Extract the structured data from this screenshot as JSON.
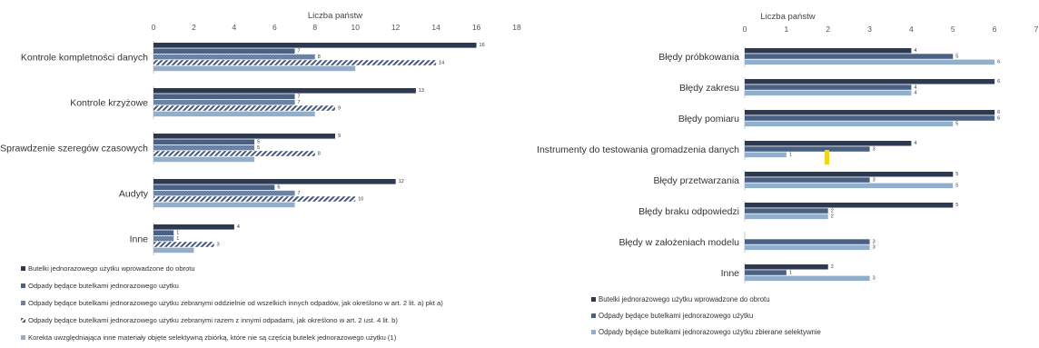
{
  "colors": {
    "dark": "#2b3a52",
    "mid": "#4a6183",
    "light": "#91aecb",
    "hatch": "#44577a",
    "axis": "#c8c8c8",
    "highlight": "#f2d31b"
  },
  "chart_data": [
    {
      "type": "bar",
      "orientation": "horizontal",
      "xlabel": "Liczba państw",
      "xlim": [
        0,
        18
      ],
      "xticks": [
        0,
        2,
        4,
        6,
        8,
        10,
        12,
        14,
        16,
        18
      ],
      "xtick_labels": [
        "0",
        "2",
        "4",
        "6",
        "8",
        "10",
        "12",
        "14",
        "16",
        "18"
      ],
      "axis_position": "top",
      "grid": false,
      "legend_position": "bottom",
      "categories": [
        "Kontrole kompletności danych",
        "Kontrole krzyżowe",
        "Sprawdzenie szeregów czasowych",
        "Audyty",
        "Inne"
      ],
      "series": [
        {
          "name": "Butelki jednorazowego użytku wprowadzone do obrotu",
          "style": "dark",
          "values": [
            16,
            13,
            9,
            12,
            4
          ],
          "value_labels": [
            "16",
            "13",
            "9",
            "12",
            "4"
          ]
        },
        {
          "name": "Odpady będące butelkami jednorazowego użytku",
          "style": "mid",
          "values": [
            7,
            7,
            5,
            6,
            1
          ],
          "value_labels": [
            "7",
            "7",
            "5",
            "6",
            "1"
          ]
        },
        {
          "name": "Odpady będące butelkami jednorazowego użytku zebranymi oddzielnie od wszelkich innych odpadów, jak określono w art. 2 lit. a) pkt a)",
          "style": "grid-pattern",
          "values": [
            8,
            7,
            5,
            7,
            1
          ],
          "value_labels": [
            "8",
            "7",
            "5",
            "7",
            "1"
          ]
        },
        {
          "name": "Odpady będące butelkami jednorazowego użytku zebranymi razem z innymi odpadami, jak określono w art. 2 ust. 4 lit. b)",
          "style": "hatch-pattern",
          "values": [
            14,
            9,
            8,
            10,
            3
          ],
          "value_labels": [
            "14",
            "9",
            "8",
            "10",
            "3"
          ]
        },
        {
          "name": "Korekta uwzględniająca inne materiały objęte selektywną zbiórką, które nie są częścią butelek jednorazowego użytku (1)",
          "style": "light",
          "values": [
            10,
            8,
            5,
            7,
            2
          ],
          "value_labels": [
            "",
            "",
            "",
            "",
            ""
          ]
        }
      ]
    },
    {
      "type": "bar",
      "orientation": "horizontal",
      "xlabel": "Liczba państw",
      "xlim": [
        0,
        7
      ],
      "xticks": [
        0,
        1,
        2,
        3,
        4,
        5,
        6,
        7
      ],
      "xtick_labels": [
        "0",
        "1",
        "2",
        "3",
        "4",
        "5",
        "6",
        "7"
      ],
      "axis_position": "top",
      "grid": false,
      "legend_position": "bottom",
      "categories": [
        "Błędy próbkowania",
        "Błędy zakresu",
        "Błędy pomiaru",
        "Instrumenty do testowania gromadzenia danych",
        "Błędy przetwarzania",
        "Błędy braku odpowiedzi",
        "Błędy w założeniach modelu",
        "Inne"
      ],
      "series": [
        {
          "name": "Butelki jednorazowego użytku wprowadzone do obrotu",
          "style": "dark",
          "values": [
            4,
            6,
            6,
            4,
            5,
            5,
            0,
            2
          ],
          "value_labels": [
            "4",
            "6",
            "6",
            "4",
            "5",
            "5",
            "",
            "2"
          ]
        },
        {
          "name": "Odpady będące butelkami jednorazowego użytku",
          "style": "mid",
          "values": [
            5,
            4,
            6,
            3,
            3,
            2,
            3,
            1
          ],
          "value_labels": [
            "5",
            "4",
            "6",
            "3",
            "3",
            "2",
            "3",
            "1"
          ]
        },
        {
          "name": "Odpady będące butelkami jednorazowego użytku zbierane selektywnie",
          "style": "light",
          "values": [
            6,
            4,
            5,
            1,
            5,
            2,
            3,
            3
          ],
          "value_labels": [
            "6",
            "4",
            "5",
            "1",
            "5",
            "2",
            "3",
            "3"
          ]
        }
      ]
    }
  ]
}
